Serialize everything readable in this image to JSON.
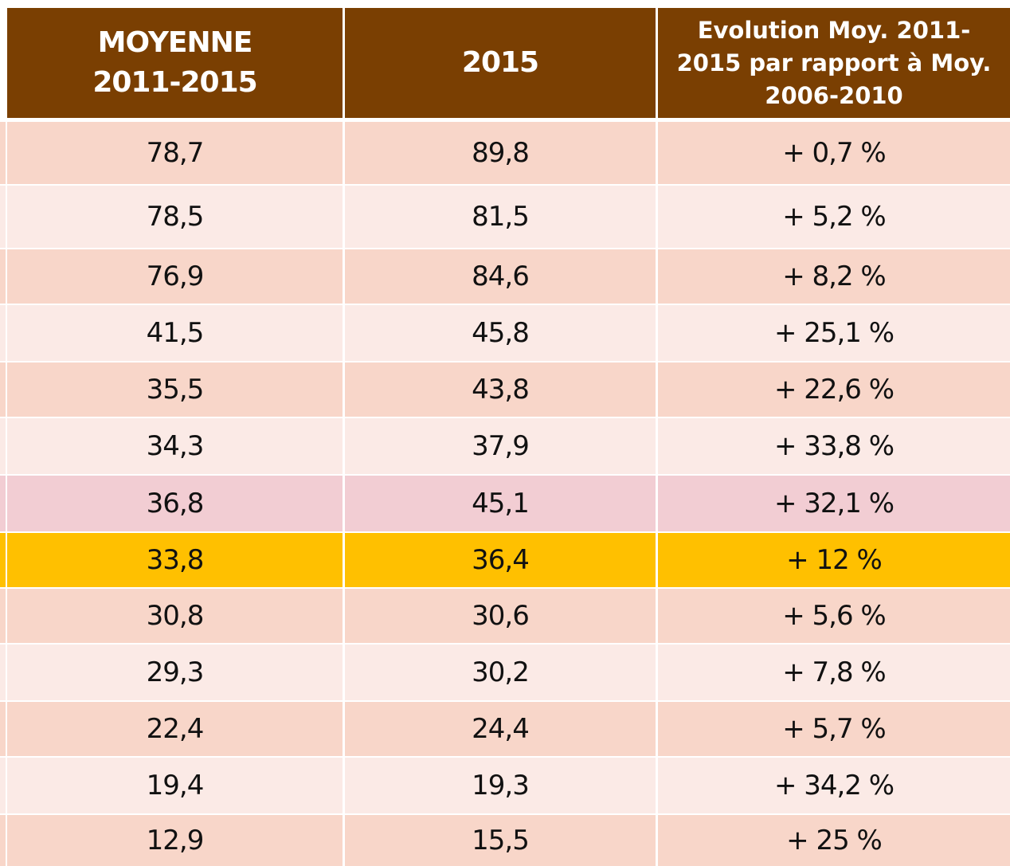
{
  "table": {
    "header": [
      [
        "MOYENNE",
        "2011-2015"
      ],
      [
        "2015"
      ],
      [
        "Evolution Moy. 2011-",
        "2015 par rapport à Moy.",
        "2006-2010"
      ]
    ],
    "rows": [
      [
        "78,7",
        "89,8",
        "+ 0,7 %"
      ],
      [
        "78,5",
        "81,5",
        "+ 5,2 %"
      ],
      [
        "76,9",
        "84,6",
        "+ 8,2 %"
      ],
      [
        "41,5",
        "45,8",
        "+ 25,1 %"
      ],
      [
        "35,5",
        "43,8",
        "+ 22,6 %"
      ],
      [
        "34,3",
        "37,9",
        "+ 33,8 %"
      ],
      [
        "36,8",
        "45,1",
        "+ 32,1 %"
      ],
      [
        "33,8",
        "36,4",
        "+ 12 %"
      ],
      [
        "30,8",
        "30,6",
        "+ 5,6 %"
      ],
      [
        "29,3",
        "30,2",
        "+ 7,8 %"
      ],
      [
        "22,4",
        "24,4",
        "+ 5,7 %"
      ],
      [
        "19,4",
        "19,3",
        "+ 34,2 %"
      ],
      [
        "12,9",
        "15,5",
        "+ 25 %"
      ]
    ]
  }
}
